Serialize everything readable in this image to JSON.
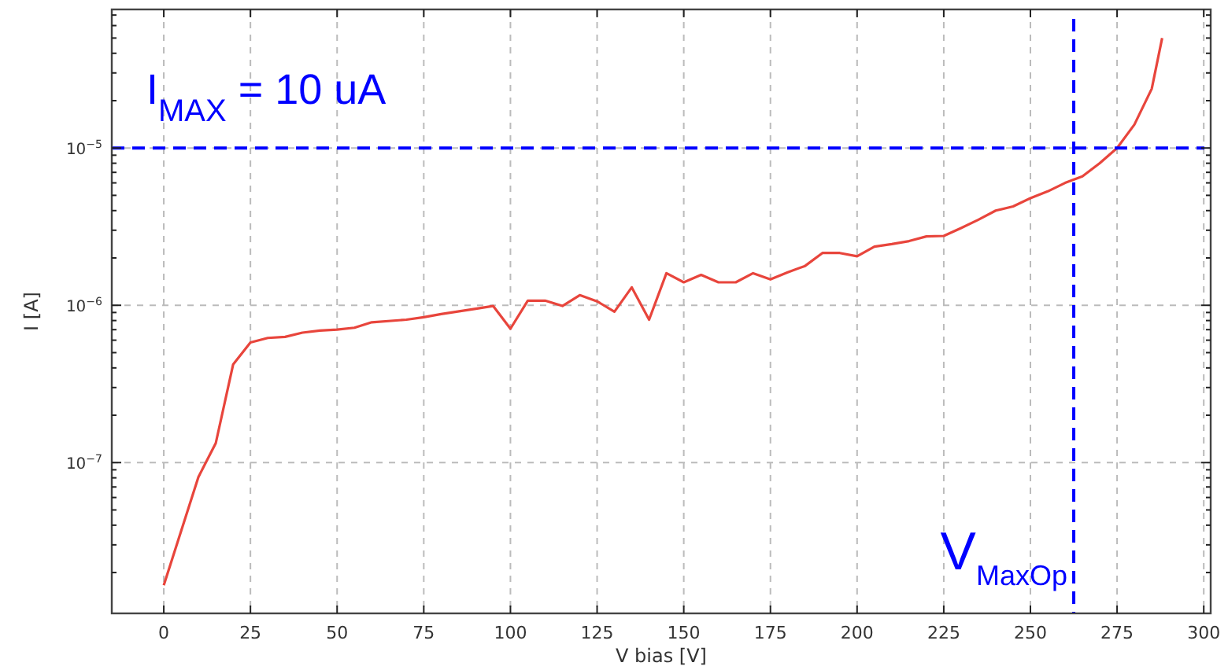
{
  "chart_data": {
    "type": "line",
    "xlabel": "V bias [V]",
    "ylabel": "I [A]",
    "log": "y",
    "grid": true,
    "line_style": "solid",
    "marker": "none",
    "xlim": [
      -15,
      302
    ],
    "xticks": [
      0,
      25,
      50,
      75,
      100,
      125,
      150,
      175,
      200,
      225,
      250,
      275,
      300
    ],
    "ylim": [
      1.1e-08,
      7.6e-05
    ],
    "yticks": [
      {
        "value": 1e-07,
        "label": "10$^{−7}$"
      },
      {
        "value": 1e-06,
        "label": "10$^{−6}$"
      },
      {
        "value": 1e-05,
        "label": "10$^{−5}$"
      },
      {
        "value": 2e-08,
        "label": null
      },
      {
        "value": 3e-08,
        "label": null
      },
      {
        "value": 4e-08,
        "label": null
      },
      {
        "value": 5e-08,
        "label": null
      },
      {
        "value": 6e-08,
        "label": null
      },
      {
        "value": 7e-08,
        "label": null
      },
      {
        "value": 8e-08,
        "label": null
      },
      {
        "value": 9e-08,
        "label": null
      },
      {
        "value": 2e-07,
        "label": null
      },
      {
        "value": 3e-07,
        "label": null
      },
      {
        "value": 4e-07,
        "label": null
      },
      {
        "value": 5e-07,
        "label": null
      },
      {
        "value": 6e-07,
        "label": null
      },
      {
        "value": 7e-07,
        "label": null
      },
      {
        "value": 8e-07,
        "label": null
      },
      {
        "value": 9e-07,
        "label": null
      },
      {
        "value": 2e-06,
        "label": null
      },
      {
        "value": 3e-06,
        "label": null
      },
      {
        "value": 4e-06,
        "label": null
      },
      {
        "value": 5e-06,
        "label": null
      },
      {
        "value": 6e-06,
        "label": null
      },
      {
        "value": 7e-06,
        "label": null
      },
      {
        "value": 8e-06,
        "label": null
      },
      {
        "value": 9e-06,
        "label": null
      },
      {
        "value": 2e-05,
        "label": null
      },
      {
        "value": 3e-05,
        "label": null
      },
      {
        "value": 4e-05,
        "label": null
      },
      {
        "value": 5e-05,
        "label": null
      },
      {
        "value": 6e-05,
        "label": null
      },
      {
        "value": 7e-05,
        "label": null
      }
    ],
    "series": [
      {
        "color": "#e8453c",
        "x": [
          0,
          10,
          15,
          20,
          25,
          30,
          35,
          40,
          45,
          50,
          55,
          60,
          70,
          75,
          80,
          90,
          95,
          100,
          105,
          110,
          115,
          120,
          125,
          130,
          135,
          140,
          145,
          150,
          155,
          160,
          165,
          170,
          175,
          180,
          185,
          190,
          195,
          200,
          205,
          210,
          215,
          220,
          225,
          230,
          235,
          240,
          245,
          250,
          255,
          260,
          265,
          270,
          275,
          280,
          285,
          288
        ],
        "values": [
          1.66e-08,
          8.1e-08,
          1.33e-07,
          4.2e-07,
          5.8e-07,
          6.2e-07,
          6.3e-07,
          6.7e-07,
          6.9e-07,
          7e-07,
          7.2e-07,
          7.8e-07,
          8.1e-07,
          8.4e-07,
          8.8e-07,
          9.5e-07,
          9.9e-07,
          7.1e-07,
          1.07e-06,
          1.07e-06,
          9.9e-07,
          1.16e-06,
          1.06e-06,
          9.1e-07,
          1.3e-06,
          8.1e-07,
          1.6e-06,
          1.4e-06,
          1.56e-06,
          1.4e-06,
          1.4e-06,
          1.6e-06,
          1.46e-06,
          1.62e-06,
          1.78e-06,
          2.15e-06,
          2.15e-06,
          2.05e-06,
          2.36e-06,
          2.45e-06,
          2.56e-06,
          2.74e-06,
          2.76e-06,
          3.1e-06,
          3.5e-06,
          4e-06,
          4.25e-06,
          4.8e-06,
          5.3e-06,
          6e-06,
          6.6e-06,
          8e-06,
          1e-05,
          1.41e-05,
          2.38e-05,
          5e-05
        ]
      }
    ],
    "ref_lines": [
      {
        "axis": "y",
        "value": 1e-05,
        "label": "I$_{MAX}$ = 10 uA",
        "color": "#0000ff",
        "line_style": "dashed"
      },
      {
        "axis": "x",
        "value": 262.5,
        "label": "V$_{MaxOp}$",
        "color": "#0000ff",
        "line_style": "dashed"
      }
    ]
  }
}
